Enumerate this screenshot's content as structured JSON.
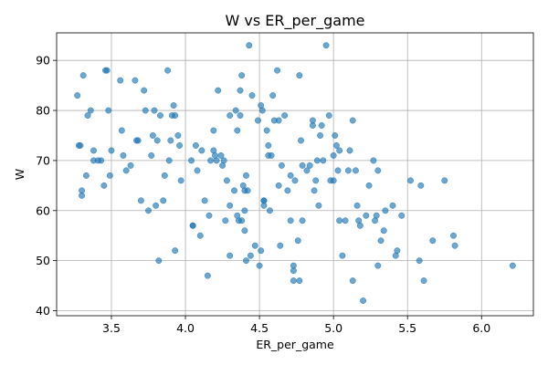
{
  "chart_data": {
    "type": "scatter",
    "title": "W vs ER_per_game",
    "xlabel": "ER_per_game",
    "ylabel": "W",
    "xlim": [
      3.13,
      6.35
    ],
    "ylim": [
      39,
      95.5
    ],
    "xticks": [
      3.5,
      4.0,
      4.5,
      5.0,
      5.5,
      6.0
    ],
    "xtick_labels": [
      "3.5",
      "4.0",
      "4.5",
      "5.0",
      "5.5",
      "6.0"
    ],
    "yticks": [
      40,
      50,
      60,
      70,
      80,
      90
    ],
    "ytick_labels": [
      "40",
      "50",
      "60",
      "70",
      "80",
      "90"
    ],
    "grid": true,
    "marker_color": "#1f77b4",
    "marker_alpha": 0.65,
    "points": [
      [
        3.27,
        83
      ],
      [
        3.28,
        73
      ],
      [
        3.29,
        73
      ],
      [
        3.3,
        64
      ],
      [
        3.3,
        63
      ],
      [
        3.31,
        87
      ],
      [
        3.33,
        67
      ],
      [
        3.34,
        79
      ],
      [
        3.36,
        80
      ],
      [
        3.38,
        70
      ],
      [
        3.38,
        72
      ],
      [
        3.41,
        70
      ],
      [
        3.43,
        70
      ],
      [
        3.45,
        65
      ],
      [
        3.46,
        88
      ],
      [
        3.47,
        88
      ],
      [
        3.48,
        80
      ],
      [
        3.49,
        67
      ],
      [
        3.5,
        72
      ],
      [
        3.56,
        86
      ],
      [
        3.57,
        76
      ],
      [
        3.58,
        71
      ],
      [
        3.6,
        68
      ],
      [
        3.63,
        69
      ],
      [
        3.66,
        86
      ],
      [
        3.67,
        74
      ],
      [
        3.68,
        74
      ],
      [
        3.7,
        62
      ],
      [
        3.72,
        84
      ],
      [
        3.73,
        80
      ],
      [
        3.75,
        60
      ],
      [
        3.77,
        71
      ],
      [
        3.78,
        75
      ],
      [
        3.79,
        80
      ],
      [
        3.8,
        61
      ],
      [
        3.81,
        74
      ],
      [
        3.82,
        50
      ],
      [
        3.83,
        79
      ],
      [
        3.85,
        62
      ],
      [
        3.86,
        67
      ],
      [
        3.88,
        88
      ],
      [
        3.89,
        70
      ],
      [
        3.9,
        74
      ],
      [
        3.91,
        79
      ],
      [
        3.92,
        81
      ],
      [
        3.93,
        79
      ],
      [
        3.93,
        52
      ],
      [
        3.95,
        75
      ],
      [
        3.96,
        73
      ],
      [
        3.97,
        66
      ],
      [
        4.04,
        70
      ],
      [
        4.05,
        57
      ],
      [
        4.05,
        57
      ],
      [
        4.07,
        73
      ],
      [
        4.08,
        68
      ],
      [
        4.1,
        55
      ],
      [
        4.11,
        72
      ],
      [
        4.13,
        62
      ],
      [
        4.15,
        47
      ],
      [
        4.16,
        59
      ],
      [
        4.17,
        70
      ],
      [
        4.19,
        76
      ],
      [
        4.19,
        72
      ],
      [
        4.2,
        71
      ],
      [
        4.21,
        70
      ],
      [
        4.22,
        84
      ],
      [
        4.24,
        71
      ],
      [
        4.25,
        69
      ],
      [
        4.26,
        70
      ],
      [
        4.27,
        58
      ],
      [
        4.28,
        66
      ],
      [
        4.3,
        79
      ],
      [
        4.3,
        61
      ],
      [
        4.3,
        51
      ],
      [
        4.33,
        64
      ],
      [
        4.34,
        80
      ],
      [
        4.35,
        76
      ],
      [
        4.35,
        59
      ],
      [
        4.36,
        58
      ],
      [
        4.37,
        84
      ],
      [
        4.37,
        79
      ],
      [
        4.38,
        58
      ],
      [
        4.38,
        87
      ],
      [
        4.39,
        65
      ],
      [
        4.4,
        56
      ],
      [
        4.4,
        64
      ],
      [
        4.4,
        60
      ],
      [
        4.41,
        67
      ],
      [
        4.41,
        50
      ],
      [
        4.42,
        64
      ],
      [
        4.43,
        93
      ],
      [
        4.44,
        51
      ],
      [
        4.45,
        83
      ],
      [
        4.47,
        53
      ],
      [
        4.49,
        78
      ],
      [
        4.5,
        49
      ],
      [
        4.51,
        81
      ],
      [
        4.51,
        52
      ],
      [
        4.52,
        80
      ],
      [
        4.53,
        62
      ],
      [
        4.53,
        62
      ],
      [
        4.53,
        61
      ],
      [
        4.55,
        76
      ],
      [
        4.56,
        73
      ],
      [
        4.56,
        71
      ],
      [
        4.57,
        60
      ],
      [
        4.58,
        71
      ],
      [
        4.59,
        83
      ],
      [
        4.6,
        78
      ],
      [
        4.62,
        88
      ],
      [
        4.63,
        78
      ],
      [
        4.63,
        65
      ],
      [
        4.64,
        53
      ],
      [
        4.65,
        69
      ],
      [
        4.67,
        79
      ],
      [
        4.69,
        64
      ],
      [
        4.71,
        67
      ],
      [
        4.71,
        58
      ],
      [
        4.73,
        49
      ],
      [
        4.73,
        48
      ],
      [
        4.73,
        46
      ],
      [
        4.74,
        66
      ],
      [
        4.76,
        54
      ],
      [
        4.77,
        87
      ],
      [
        4.77,
        46
      ],
      [
        4.78,
        74
      ],
      [
        4.79,
        58
      ],
      [
        4.79,
        69
      ],
      [
        4.82,
        68
      ],
      [
        4.84,
        69
      ],
      [
        4.86,
        78
      ],
      [
        4.86,
        77
      ],
      [
        4.87,
        64
      ],
      [
        4.88,
        66
      ],
      [
        4.89,
        70
      ],
      [
        4.9,
        61
      ],
      [
        4.91,
        75
      ],
      [
        4.92,
        77
      ],
      [
        4.93,
        70
      ],
      [
        4.95,
        93
      ],
      [
        4.97,
        79
      ],
      [
        4.98,
        66
      ],
      [
        5.0,
        66
      ],
      [
        5.0,
        71
      ],
      [
        5.01,
        75
      ],
      [
        5.02,
        73
      ],
      [
        5.03,
        68
      ],
      [
        5.04,
        58
      ],
      [
        5.04,
        72
      ],
      [
        5.06,
        51
      ],
      [
        5.08,
        58
      ],
      [
        5.1,
        68
      ],
      [
        5.11,
        72
      ],
      [
        5.13,
        46
      ],
      [
        5.13,
        78
      ],
      [
        5.15,
        68
      ],
      [
        5.16,
        61
      ],
      [
        5.17,
        58
      ],
      [
        5.18,
        57
      ],
      [
        5.2,
        42
      ],
      [
        5.22,
        59
      ],
      [
        5.24,
        65
      ],
      [
        5.27,
        70
      ],
      [
        5.28,
        58
      ],
      [
        5.29,
        59
      ],
      [
        5.3,
        49
      ],
      [
        5.3,
        68
      ],
      [
        5.32,
        54
      ],
      [
        5.34,
        56
      ],
      [
        5.35,
        60
      ],
      [
        5.4,
        61
      ],
      [
        5.42,
        51
      ],
      [
        5.43,
        52
      ],
      [
        5.46,
        59
      ],
      [
        5.52,
        66
      ],
      [
        5.58,
        50
      ],
      [
        5.59,
        65
      ],
      [
        5.61,
        46
      ],
      [
        5.67,
        54
      ],
      [
        5.75,
        66
      ],
      [
        5.81,
        55
      ],
      [
        5.82,
        53
      ],
      [
        6.21,
        49
      ]
    ]
  }
}
